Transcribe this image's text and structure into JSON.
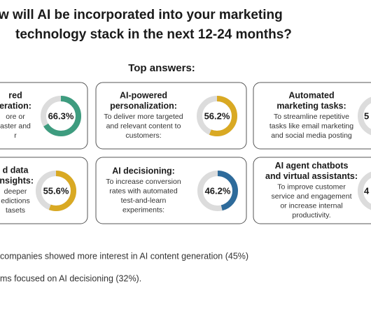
{
  "title": [
    "w will AI be incorporated into your marketing",
    "technology stack in the next 12-24 months?"
  ],
  "subtitle": "Top answers:",
  "cards": [
    {
      "title": [
        "red",
        "eration:"
      ],
      "description": [
        "ore or",
        "aster and",
        "r"
      ],
      "value": 66.3,
      "value_label": "66.3%",
      "color": "#3e9c7f"
    },
    {
      "title": [
        "AI-powered",
        "personalization:"
      ],
      "description": [
        "To deliver more targeted",
        "and relevant content to",
        "customers:"
      ],
      "value": 56.2,
      "value_label": "56.2%",
      "color": "#d9a923"
    },
    {
      "title": [
        "Automated",
        "marketing tasks:"
      ],
      "description": [
        "To streamline repetitive",
        "tasks like email marketing",
        "and social media posting"
      ],
      "value_label": "5"
    },
    {
      "title": [
        "d data",
        "insights:"
      ],
      "description": [
        "deeper",
        "edictions",
        "tasets"
      ],
      "value": 55.6,
      "value_label": "55.6%",
      "color": "#d9a923"
    },
    {
      "title": [
        "AI decisioning:"
      ],
      "description": [
        "To increase conversion",
        "rates with automated",
        "test-and-learn",
        "experiments:"
      ],
      "value": 46.2,
      "value_label": "46.2%",
      "color": "#2e6b9b"
    },
    {
      "title": [
        "AI agent chatbots",
        "and virtual assistants:"
      ],
      "description": [
        "To improve customer",
        "service and engagement",
        "or increase internal",
        "productivity."
      ],
      "value_label": "4"
    }
  ],
  "notes": [
    "companies showed more interest in AI content generation (45%)",
    "ms focused on AI decisioning (32%)."
  ]
}
